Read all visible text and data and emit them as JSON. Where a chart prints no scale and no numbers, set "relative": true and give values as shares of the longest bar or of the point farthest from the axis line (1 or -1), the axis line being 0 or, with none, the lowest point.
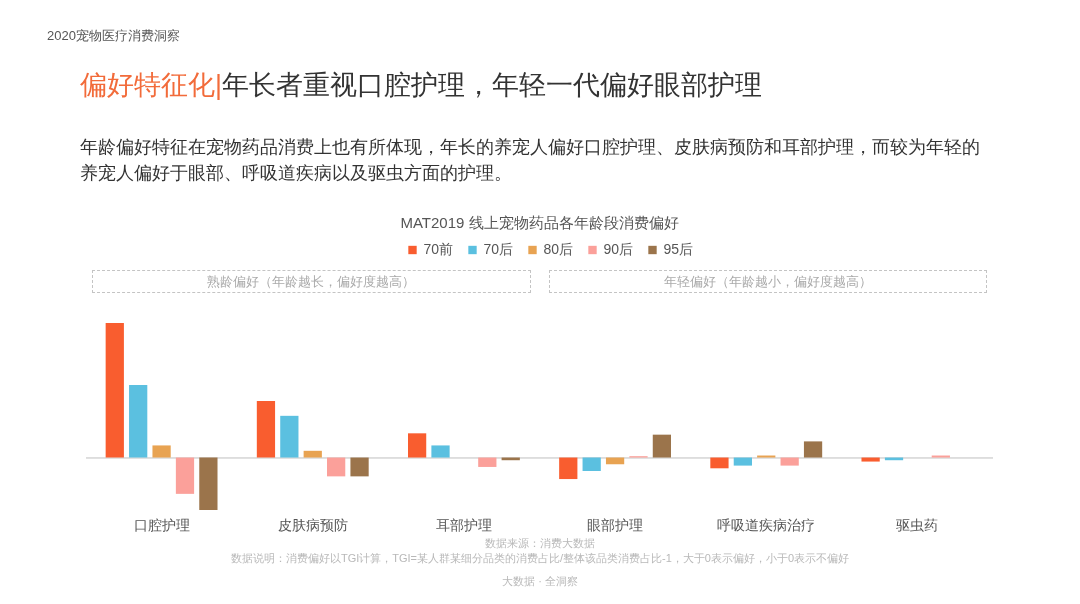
{
  "chart_data": {
    "type": "bar",
    "title": "MAT2019 线上宠物药品各年龄段消费偏好",
    "categories": [
      "口腔护理",
      "皮肤病预防",
      "耳部护理",
      "眼部护理",
      "呼吸道疾病治疗",
      "驱虫药"
    ],
    "relative": true,
    "legend": "top",
    "series": [
      {
        "name": "70前",
        "color": "#f95d2f",
        "values": [
          1,
          0.42,
          0.18,
          -0.16,
          -0.08,
          -0.03
        ]
      },
      {
        "name": "70后",
        "color": "#5bc0e0",
        "values": [
          0.54,
          0.31,
          0.09,
          -0.1,
          -0.06,
          -0.02
        ]
      },
      {
        "name": "80后",
        "color": "#e8a352",
        "values": [
          0.09,
          0.05,
          0,
          -0.05,
          0.015,
          0
        ]
      },
      {
        "name": "90后",
        "color": "#fba09a",
        "values": [
          -0.27,
          -0.14,
          -0.07,
          0.01,
          -0.06,
          0.015
        ]
      },
      {
        "name": "95后",
        "color": "#9b744b",
        "values": [
          -0.39,
          -0.14,
          -0.02,
          0.17,
          0.12,
          0
        ]
      }
    ],
    "annotations": [
      "2020宠物医疗消费洞察",
      "偏好特征化|",
      "年长者重视口腔护理，年轻一代偏好眼部护理",
      "年龄偏好特征在宠物药品消费上也有所体现，年长的养宠人偏好口腔护理、皮肤病预防和耳部护理，而较为年轻的养宠人偏好于眼部、呼吸道疾病以及驱虫方面的护理。",
      "熟龄偏好（年龄越长，偏好度越高）",
      "年轻偏好（年龄越小，偏好度越高）",
      "数据来源：消费大数据",
      "数据说明：消费偏好以TGI计算，TGI=某人群某细分品类的消费占比/整体该品类消费占比-1，大于0表示偏好，小于0表示不偏好",
      "大数据 · 全洞察"
    ]
  }
}
